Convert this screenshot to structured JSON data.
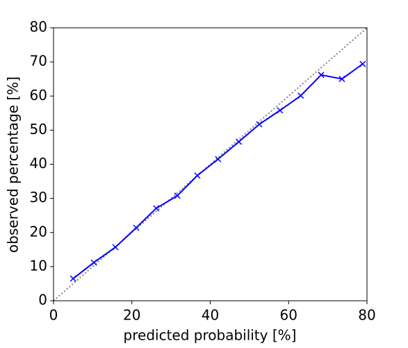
{
  "chart_data": {
    "type": "line",
    "x_label": "predicted probability [%]",
    "y_label": "observed percentage [%]",
    "series": [
      {
        "color": "#0000ff",
        "marker": "x",
        "x": [
          5.0,
          10.3,
          15.8,
          21.1,
          26.2,
          31.6,
          36.7,
          42.0,
          47.3,
          52.5,
          57.8,
          63.1,
          68.3,
          73.6,
          78.9
        ],
        "values": [
          6.5,
          11.2,
          15.7,
          21.4,
          27.1,
          30.8,
          36.7,
          41.5,
          46.6,
          51.7,
          55.8,
          60.1,
          66.2,
          65.0,
          69.4
        ]
      }
    ],
    "diagonal": {
      "color": "#808080",
      "style": "dotted"
    },
    "xlim": [
      0,
      80
    ],
    "xticks": [
      0,
      20,
      40,
      60,
      80
    ],
    "ylim": [
      0,
      80
    ],
    "yticks": [
      0,
      10,
      20,
      30,
      40,
      50,
      60,
      70,
      80
    ],
    "grid": false
  }
}
